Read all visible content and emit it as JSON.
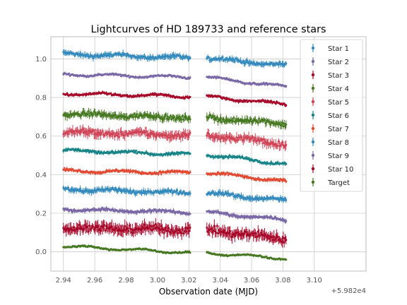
{
  "chart_data": {
    "type": "scatter",
    "title": "Lightcurves of HD 189733 and reference stars",
    "xlabel": "Observation date (MJD)",
    "ylabel": "",
    "x_offset_text": "+5.982e4",
    "xlim": [
      2.932,
      3.133
    ],
    "ylim": [
      -0.1,
      1.115
    ],
    "x_ticks": [
      2.94,
      2.96,
      2.98,
      3.0,
      3.02,
      3.04,
      3.06,
      3.08,
      3.1
    ],
    "x_tick_labels": [
      "2.94",
      "2.96",
      "2.98",
      "3.00",
      "3.02",
      "3.04",
      "3.06",
      "3.08",
      "3.10"
    ],
    "y_ticks": [
      0.0,
      0.2,
      0.4,
      0.6,
      0.8,
      1.0
    ],
    "y_tick_labels": [
      "0.0",
      "0.2",
      "0.4",
      "0.6",
      "0.8",
      "1.0"
    ],
    "grid": true,
    "legend_position": "upper right",
    "gap": [
      3.021,
      3.031
    ],
    "x_range": [
      2.94,
      3.082
    ],
    "series": [
      {
        "name": "Star 1",
        "color": "#348abd",
        "y_start": 1.025,
        "y_mid": 1.005,
        "y_end": 0.965,
        "scatter": 0.014
      },
      {
        "name": "Star 2",
        "color": "#7a68a6",
        "y_start": 0.92,
        "y_mid": 0.905,
        "y_end": 0.855,
        "scatter": 0.007
      },
      {
        "name": "Star 3",
        "color": "#a60628",
        "y_start": 0.82,
        "y_mid": 0.805,
        "y_end": 0.765,
        "scatter": 0.008
      },
      {
        "name": "Star 4",
        "color": "#467821",
        "y_start": 0.715,
        "y_mid": 0.695,
        "y_end": 0.665,
        "scatter": 0.018
      },
      {
        "name": "Star 5",
        "color": "#cf4457",
        "y_start": 0.62,
        "y_mid": 0.605,
        "y_end": 0.56,
        "scatter": 0.022
      },
      {
        "name": "Star 6",
        "color": "#188487",
        "y_start": 0.525,
        "y_mid": 0.505,
        "y_end": 0.455,
        "scatter": 0.009
      },
      {
        "name": "Star 7",
        "color": "#e24a33",
        "y_start": 0.42,
        "y_mid": 0.41,
        "y_end": 0.365,
        "scatter": 0.009
      },
      {
        "name": "Star 8",
        "color": "#348abd",
        "y_start": 0.325,
        "y_mid": 0.305,
        "y_end": 0.265,
        "scatter": 0.014
      },
      {
        "name": "Star 9",
        "color": "#7a68a6",
        "y_start": 0.22,
        "y_mid": 0.205,
        "y_end": 0.165,
        "scatter": 0.01
      },
      {
        "name": "Star 10",
        "color": "#a60628",
        "y_start": 0.125,
        "y_mid": 0.115,
        "y_end": 0.065,
        "scatter": 0.028
      },
      {
        "name": "Target",
        "color": "#467821",
        "y_start": 0.03,
        "y_mid": -0.005,
        "y_end": -0.035,
        "scatter": 0.006
      }
    ]
  }
}
